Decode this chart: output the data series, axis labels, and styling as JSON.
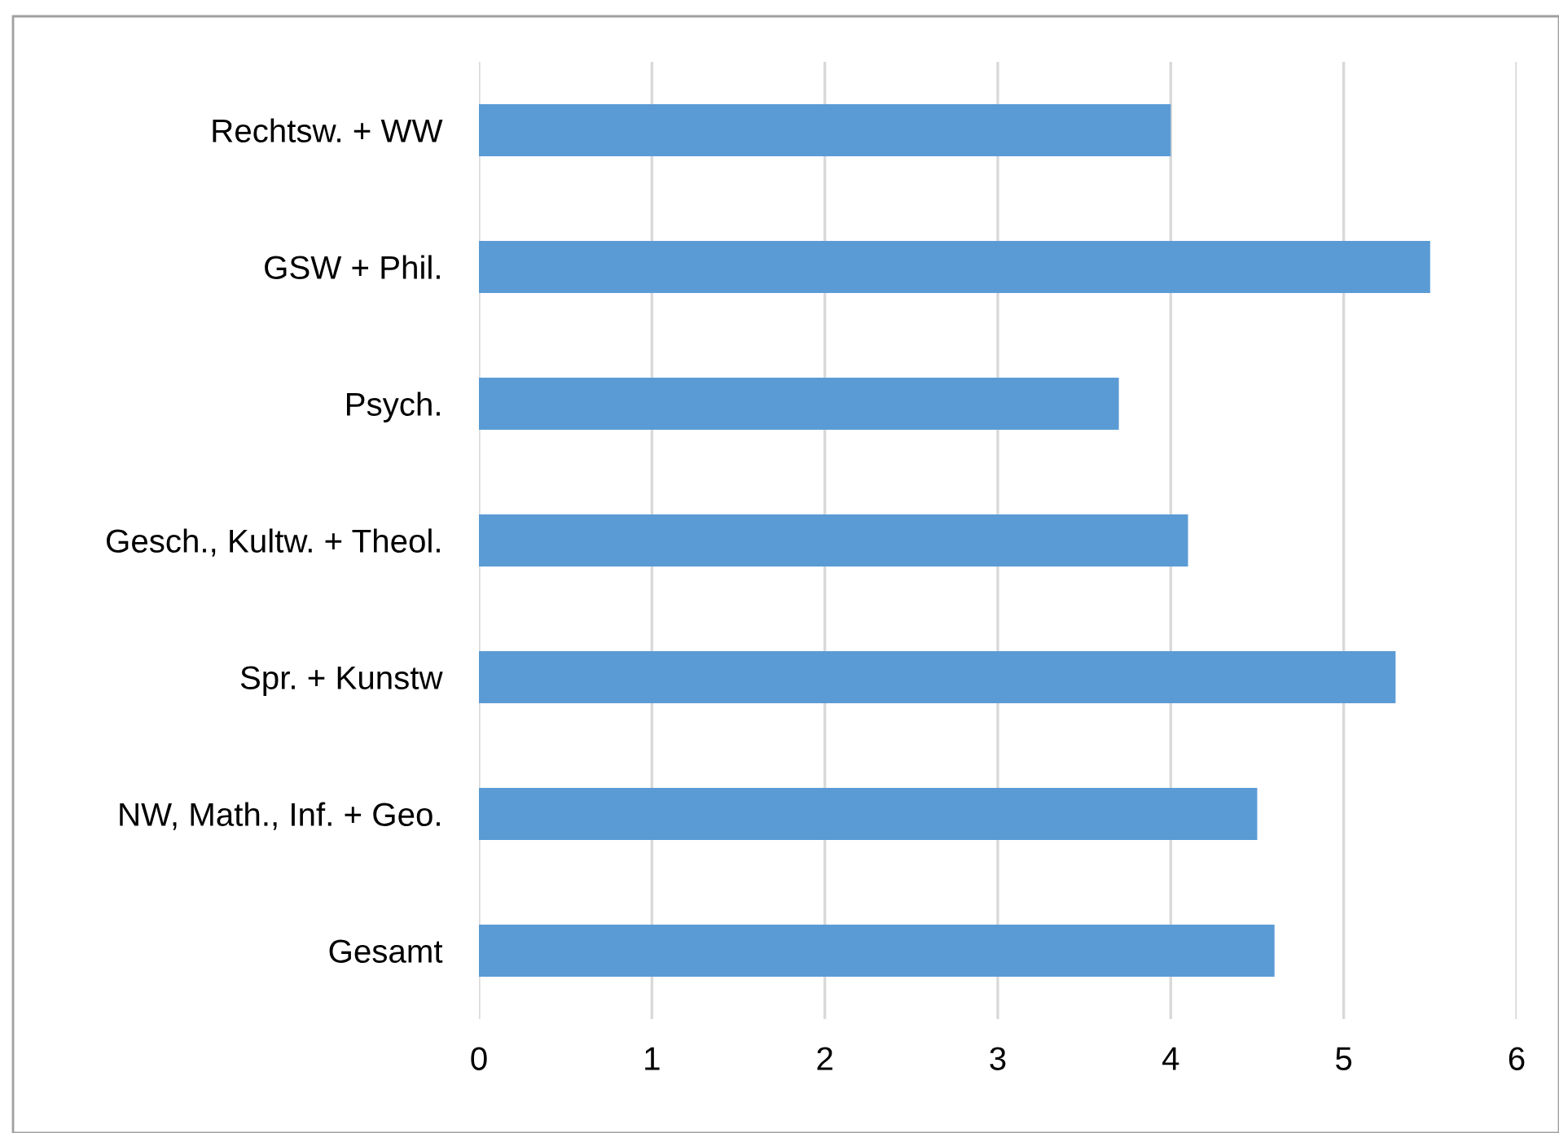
{
  "chart_data": {
    "type": "bar",
    "orientation": "horizontal",
    "categories": [
      "Rechtsw. + WW",
      "GSW + Phil.",
      "Psych.",
      "Gesch., Kultw. + Theol.",
      "Spr. + Kunstw",
      "NW, Math., Inf. + Geo.",
      "Gesamt"
    ],
    "values": [
      4.0,
      5.5,
      3.7,
      4.1,
      5.3,
      4.5,
      4.6
    ],
    "color": "#5b9bd5",
    "xlim": [
      0,
      6
    ],
    "xticks": [
      0,
      1,
      2,
      3,
      4,
      5,
      6
    ],
    "grid": "x",
    "legend": false
  }
}
